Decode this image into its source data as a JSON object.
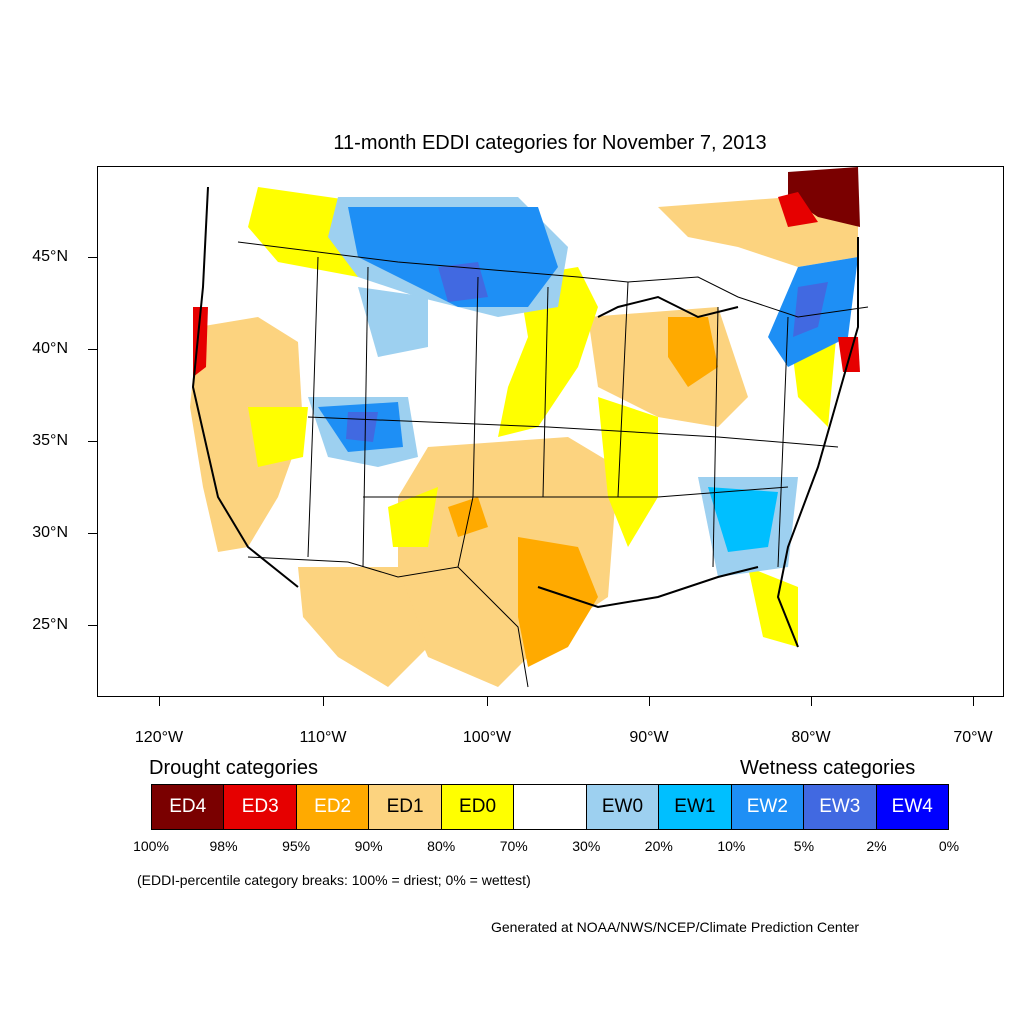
{
  "title": "11-month EDDI categories for November 7, 2013",
  "axes": {
    "lat_labels": [
      "45°N",
      "40°N",
      "35°N",
      "30°N",
      "25°N"
    ],
    "lon_labels": [
      "120°W",
      "110°W",
      "100°W",
      "90°W",
      "80°W",
      "70°W"
    ]
  },
  "legend": {
    "drought_heading": "Drought categories",
    "wetness_heading": "Wetness categories",
    "categories": [
      {
        "label": "ED4",
        "color": "#7a0000",
        "text_color": "#ffffff"
      },
      {
        "label": "ED3",
        "color": "#e60000",
        "text_color": "#ffffff"
      },
      {
        "label": "ED2",
        "color": "#ffaa00",
        "text_color": "#ffffff"
      },
      {
        "label": "ED1",
        "color": "#fcd37f",
        "text_color": "#000000"
      },
      {
        "label": "ED0",
        "color": "#ffff00",
        "text_color": "#000000"
      },
      {
        "label": "",
        "color": "#ffffff",
        "text_color": "#000000"
      },
      {
        "label": "EW0",
        "color": "#9dd0f0",
        "text_color": "#000000"
      },
      {
        "label": "EW1",
        "color": "#00bfff",
        "text_color": "#000000"
      },
      {
        "label": "EW2",
        "color": "#1e8ff5",
        "text_color": "#ffffff"
      },
      {
        "label": "EW3",
        "color": "#4169e1",
        "text_color": "#ffffff"
      },
      {
        "label": "EW4",
        "color": "#0000ff",
        "text_color": "#ffffff"
      }
    ],
    "breaks": [
      "100%",
      "98%",
      "95%",
      "90%",
      "80%",
      "70%",
      "30%",
      "20%",
      "10%",
      "5%",
      "2%",
      "0%"
    ],
    "breaks_note": "(EDDI-percentile category breaks: 100% = driest; 0% = wettest)"
  },
  "credit": "Generated at NOAA/NWS/NCEP/Climate Prediction Center"
}
